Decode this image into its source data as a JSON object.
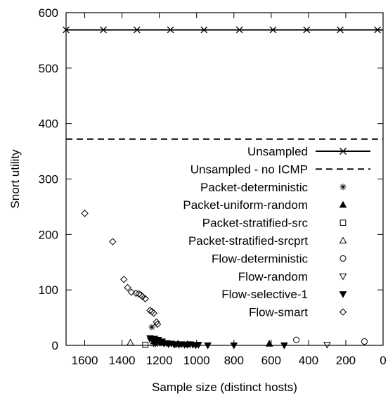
{
  "chart_data": {
    "type": "scatter",
    "title": "",
    "xlabel": "Sample size (distinct hosts)",
    "ylabel": "Snort utility",
    "x_reversed": true,
    "xlim": [
      1700,
      0
    ],
    "ylim": [
      0,
      600
    ],
    "x_ticks": [
      1600,
      1400,
      1200,
      1000,
      800,
      600,
      400,
      200,
      0
    ],
    "y_ticks": [
      0,
      100,
      200,
      300,
      400,
      500,
      600
    ],
    "grid": false,
    "legend_position": "right",
    "series": [
      {
        "name": "Unsampled",
        "marker": "x",
        "line": "solid",
        "points": [
          [
            1700,
            569
          ],
          [
            1500,
            569
          ],
          [
            1320,
            569
          ],
          [
            1140,
            569
          ],
          [
            960,
            569
          ],
          [
            770,
            569
          ],
          [
            590,
            569
          ],
          [
            410,
            569
          ],
          [
            230,
            569
          ],
          [
            30,
            569
          ]
        ],
        "line_extent": [
          1700,
          0
        ]
      },
      {
        "name": "Unsampled - no ICMP",
        "marker": "none",
        "line": "dashed",
        "points": [],
        "line_extent": [
          1700,
          0
        ],
        "value": 372
      },
      {
        "name": "Packet-deterministic",
        "marker": "asterisk",
        "points": [
          [
            1240,
            33
          ],
          [
            1230,
            3
          ],
          [
            1220,
            2
          ]
        ]
      },
      {
        "name": "Packet-uniform-random",
        "marker": "filled-triangle-up",
        "points": [
          [
            1100,
            3
          ],
          [
            1050,
            2
          ],
          [
            610,
            3
          ]
        ]
      },
      {
        "name": "Packet-stratified-src",
        "marker": "open-square",
        "points": [
          [
            1275,
            1
          ]
        ]
      },
      {
        "name": "Packet-stratified-srcprt",
        "marker": "open-triangle-up",
        "points": [
          [
            1355,
            5
          ]
        ]
      },
      {
        "name": "Flow-deterministic",
        "marker": "open-circle",
        "points": [
          [
            465,
            10
          ],
          [
            100,
            7
          ]
        ]
      },
      {
        "name": "Flow-random",
        "marker": "open-triangle-down",
        "points": [
          [
            1245,
            8
          ],
          [
            300,
            1
          ]
        ]
      },
      {
        "name": "Flow-selective-1",
        "marker": "filled-triangle-down",
        "points": [
          [
            1250,
            13
          ],
          [
            1235,
            8
          ],
          [
            1225,
            12
          ],
          [
            1215,
            6
          ],
          [
            1205,
            10
          ],
          [
            1195,
            5
          ],
          [
            1185,
            7
          ],
          [
            1175,
            3
          ],
          [
            1160,
            4
          ],
          [
            1150,
            2
          ],
          [
            1135,
            3
          ],
          [
            1120,
            1
          ],
          [
            1110,
            2
          ],
          [
            1095,
            1
          ],
          [
            1080,
            2
          ],
          [
            1065,
            1
          ],
          [
            1050,
            1
          ],
          [
            1035,
            2
          ],
          [
            1020,
            1
          ],
          [
            1005,
            0
          ],
          [
            990,
            1
          ],
          [
            940,
            0
          ],
          [
            800,
            0
          ],
          [
            530,
            0
          ]
        ]
      },
      {
        "name": "Flow-smart",
        "marker": "open-diamond",
        "points": [
          [
            1600,
            238
          ],
          [
            1450,
            187
          ],
          [
            1390,
            119
          ],
          [
            1370,
            104
          ],
          [
            1350,
            96
          ],
          [
            1325,
            94
          ],
          [
            1310,
            93
          ],
          [
            1300,
            91
          ],
          [
            1290,
            88
          ],
          [
            1275,
            84
          ],
          [
            1250,
            63
          ],
          [
            1240,
            61
          ],
          [
            1230,
            58
          ],
          [
            1215,
            42
          ],
          [
            1210,
            38
          ],
          [
            1195,
            5
          ]
        ]
      }
    ]
  }
}
